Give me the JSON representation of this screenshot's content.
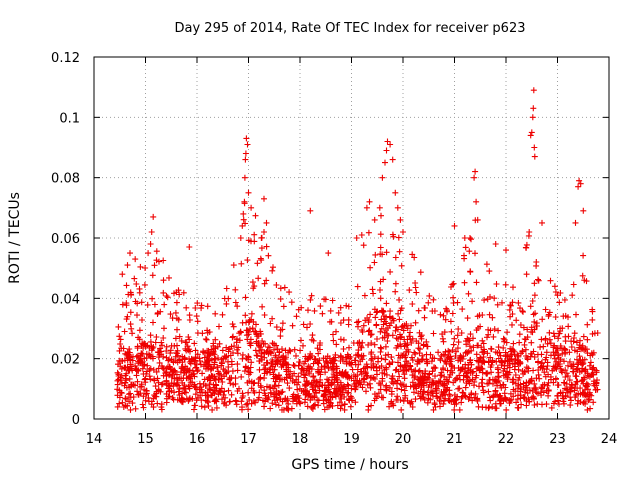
{
  "chart_data": {
    "type": "scatter",
    "title": "Day 295 of 2014, Rate Of TEC Index for receiver p623",
    "xlabel": "GPS time / hours",
    "ylabel": "ROTI / TECUs",
    "xlim": [
      14,
      24
    ],
    "ylim": [
      0,
      0.12
    ],
    "xticks": [
      14,
      15,
      16,
      17,
      18,
      19,
      20,
      21,
      22,
      23,
      24
    ],
    "xtick_labels": [
      "14",
      "15",
      "16",
      "17",
      "18",
      "19",
      "20",
      "21",
      "22",
      "23",
      "24"
    ],
    "yticks": [
      0,
      0.02,
      0.04,
      0.06,
      0.08,
      0.1,
      0.12
    ],
    "ytick_labels": [
      "0",
      "0.02",
      "0.04",
      "0.06",
      "0.08",
      "0.1",
      "0.12"
    ],
    "grid": true,
    "marker": "+",
    "series": [
      {
        "name": "ROTI",
        "color": "#ee0000",
        "data_range": [
          14.45,
          23.78
        ],
        "envelope": [
          [
            14.45,
            0.022,
            0.04
          ],
          [
            14.7,
            0.022,
            0.048
          ],
          [
            15.0,
            0.025,
            0.052
          ],
          [
            15.15,
            0.028,
            0.062
          ],
          [
            15.5,
            0.022,
            0.045
          ],
          [
            16.0,
            0.022,
            0.04
          ],
          [
            16.5,
            0.022,
            0.04
          ],
          [
            16.85,
            0.03,
            0.06
          ],
          [
            16.95,
            0.035,
            0.078
          ],
          [
            17.2,
            0.03,
            0.065
          ],
          [
            17.6,
            0.022,
            0.045
          ],
          [
            18.0,
            0.02,
            0.04
          ],
          [
            18.5,
            0.02,
            0.042
          ],
          [
            18.9,
            0.02,
            0.04
          ],
          [
            19.2,
            0.03,
            0.06
          ],
          [
            19.45,
            0.035,
            0.07
          ],
          [
            19.7,
            0.038,
            0.08
          ],
          [
            20.0,
            0.03,
            0.062
          ],
          [
            20.5,
            0.022,
            0.045
          ],
          [
            21.0,
            0.022,
            0.048
          ],
          [
            21.35,
            0.028,
            0.07
          ],
          [
            21.8,
            0.022,
            0.045
          ],
          [
            22.2,
            0.022,
            0.045
          ],
          [
            22.5,
            0.032,
            0.065
          ],
          [
            22.8,
            0.025,
            0.048
          ],
          [
            23.1,
            0.022,
            0.042
          ],
          [
            23.4,
            0.025,
            0.06
          ],
          [
            23.78,
            0.02,
            0.04
          ]
        ],
        "peak_values": [
          [
            14.55,
            0.048
          ],
          [
            14.65,
            0.051
          ],
          [
            14.7,
            0.055
          ],
          [
            14.8,
            0.053
          ],
          [
            15.05,
            0.055
          ],
          [
            15.1,
            0.058
          ],
          [
            15.12,
            0.062
          ],
          [
            15.15,
            0.067
          ],
          [
            15.35,
            0.046
          ],
          [
            15.6,
            0.042
          ],
          [
            15.85,
            0.057
          ],
          [
            16.85,
            0.06
          ],
          [
            16.88,
            0.064
          ],
          [
            16.9,
            0.068
          ],
          [
            16.92,
            0.072
          ],
          [
            16.93,
            0.08
          ],
          [
            16.94,
            0.086
          ],
          [
            16.95,
            0.088
          ],
          [
            16.96,
            0.093
          ],
          [
            16.98,
            0.091
          ],
          [
            17.0,
            0.075
          ],
          [
            17.05,
            0.07
          ],
          [
            17.25,
            0.06
          ],
          [
            17.3,
            0.062
          ],
          [
            17.3,
            0.073
          ],
          [
            17.35,
            0.065
          ],
          [
            18.2,
            0.069
          ],
          [
            18.55,
            0.055
          ],
          [
            19.1,
            0.06
          ],
          [
            19.2,
            0.061
          ],
          [
            19.3,
            0.07
          ],
          [
            19.35,
            0.072
          ],
          [
            19.45,
            0.066
          ],
          [
            19.55,
            0.07
          ],
          [
            19.6,
            0.08
          ],
          [
            19.65,
            0.085
          ],
          [
            19.68,
            0.089
          ],
          [
            19.7,
            0.092
          ],
          [
            19.75,
            0.091
          ],
          [
            19.8,
            0.086
          ],
          [
            19.85,
            0.075
          ],
          [
            19.9,
            0.07
          ],
          [
            19.95,
            0.066
          ],
          [
            20.0,
            0.062
          ],
          [
            21.0,
            0.064
          ],
          [
            21.2,
            0.06
          ],
          [
            21.3,
            0.06
          ],
          [
            21.38,
            0.08
          ],
          [
            21.4,
            0.082
          ],
          [
            21.42,
            0.072
          ],
          [
            21.45,
            0.066
          ],
          [
            21.8,
            0.058
          ],
          [
            22.0,
            0.056
          ],
          [
            22.4,
            0.048
          ],
          [
            22.45,
            0.062
          ],
          [
            22.48,
            0.094
          ],
          [
            22.5,
            0.095
          ],
          [
            22.52,
            0.1
          ],
          [
            22.53,
            0.103
          ],
          [
            22.54,
            0.109
          ],
          [
            22.55,
            0.09
          ],
          [
            22.56,
            0.087
          ],
          [
            22.7,
            0.065
          ],
          [
            22.95,
            0.044
          ],
          [
            23.35,
            0.065
          ],
          [
            23.4,
            0.077
          ],
          [
            23.42,
            0.079
          ],
          [
            23.45,
            0.078
          ],
          [
            23.5,
            0.069
          ],
          [
            23.52,
            0.046
          ]
        ]
      }
    ]
  }
}
